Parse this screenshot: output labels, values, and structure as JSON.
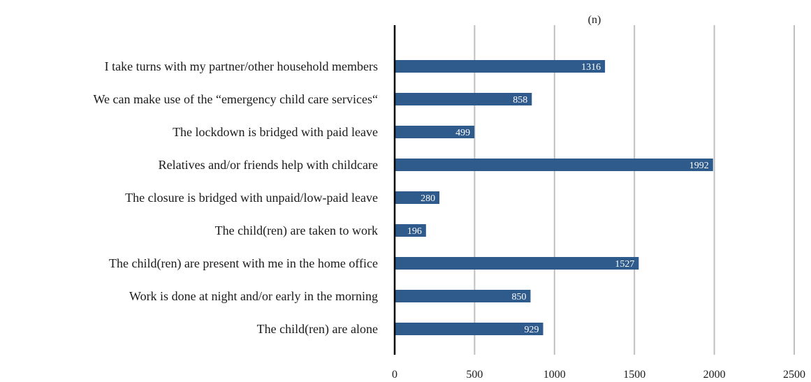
{
  "chart_data": {
    "type": "bar",
    "orientation": "horizontal",
    "unit_label": "(n)",
    "categories": [
      "I take turns with my partner/other household members",
      "We can make use of the “emergency child care services“",
      "The lockdown is bridged with paid leave",
      "Relatives and/or friends help with childcare",
      "The closure is bridged with unpaid/low-paid leave",
      "The child(ren) are taken to work",
      "The child(ren) are present with me in the home office",
      "Work is done at night and/or early in the morning",
      "The child(ren) are alone"
    ],
    "values": [
      1316,
      858,
      499,
      1992,
      280,
      196,
      1527,
      850,
      929
    ],
    "xlim": [
      0,
      2500
    ],
    "xticks": [
      0,
      500,
      1000,
      1500,
      2000,
      2500
    ],
    "grid": true,
    "data_labels": true,
    "bar_color": "#2f5a8c"
  }
}
